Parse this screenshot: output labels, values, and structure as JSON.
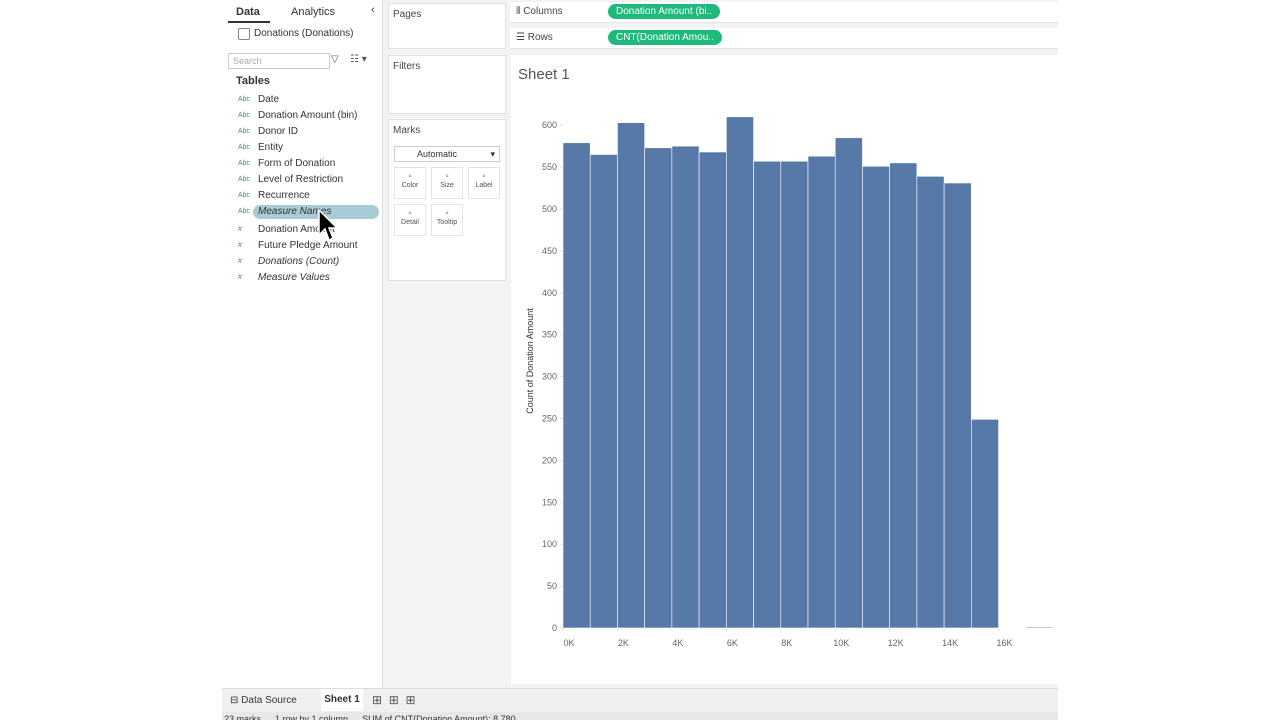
{
  "tabs": {
    "data": "Data",
    "analytics": "Analytics"
  },
  "datasource": "Donations (Donations)",
  "search_placeholder": "Search",
  "tables_heading": "Tables",
  "fields": [
    {
      "icon": "Abc",
      "name": "Date"
    },
    {
      "icon": "Abc",
      "name": "Donation Amount (bin)"
    },
    {
      "icon": "Abc",
      "name": "Donor ID"
    },
    {
      "icon": "Abc",
      "name": "Entity"
    },
    {
      "icon": "Abc",
      "name": "Form of Donation"
    },
    {
      "icon": "Abc",
      "name": "Level of Restriction"
    },
    {
      "icon": "Abc",
      "name": "Recurrence"
    },
    {
      "icon": "Abc",
      "name": "Measure Names"
    },
    {
      "icon": "#",
      "name": "Donation Amount"
    },
    {
      "icon": "#",
      "name": "Future Pledge Amount"
    },
    {
      "icon": "#",
      "name": "Donations (Count)"
    },
    {
      "icon": "#",
      "name": "Measure Values"
    }
  ],
  "cards": {
    "pages": "Pages",
    "filters": "Filters",
    "marks": "Marks",
    "mark_type": "Automatic"
  },
  "mark_buttons": [
    "Color",
    "Size",
    "Label",
    "Detail",
    "Tooltip"
  ],
  "shelves": {
    "columns": "Columns",
    "columns_pill": "Donation Amount (bi..",
    "rows": "Rows",
    "rows_pill": "CNT(Donation Amou.."
  },
  "sheet_tabs": {
    "data_source": "Data Source",
    "sheet": "Sheet 1"
  },
  "status": [
    "23 marks",
    "1 row by 1 column",
    "SUM of CNT(Donation Amount): 8,780"
  ],
  "chart_data": {
    "type": "histogram",
    "title": "Sheet 1",
    "y_label": "Count of Donation Amount",
    "color": "#5779a8",
    "bins": [
      0,
      1000,
      2000,
      3000,
      4000,
      5000,
      6000,
      7000,
      8000,
      9000,
      10000,
      11000,
      12000,
      13000,
      14000,
      15000,
      16000,
      17000,
      18000
    ],
    "counts": [
      579,
      565,
      603,
      573,
      575,
      568,
      610,
      557,
      557,
      563,
      585,
      551,
      555,
      539,
      531,
      249,
      0,
      1
    ],
    "xlim": [
      0,
      18000
    ],
    "xticks": [
      {
        "value": 0,
        "label": "0K"
      },
      {
        "value": 2000,
        "label": "2K"
      },
      {
        "value": 4000,
        "label": "4K"
      },
      {
        "value": 6000,
        "label": "6K"
      },
      {
        "value": 8000,
        "label": "8K"
      },
      {
        "value": 10000,
        "label": "10K"
      },
      {
        "value": 12000,
        "label": "12K"
      },
      {
        "value": 14000,
        "label": "14K"
      },
      {
        "value": 16000,
        "label": "16K"
      }
    ],
    "ylim": [
      0,
      636
    ],
    "yticks": [
      0,
      50,
      100,
      150,
      200,
      250,
      300,
      350,
      400,
      450,
      500,
      550,
      600
    ]
  }
}
